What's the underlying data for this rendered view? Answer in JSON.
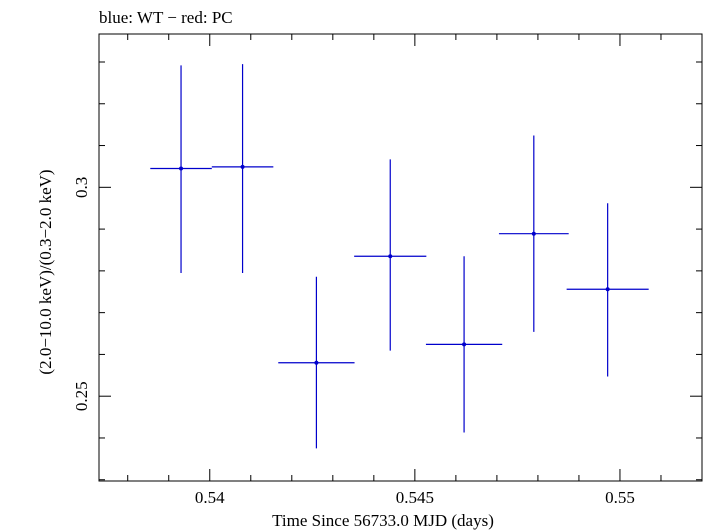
{
  "header_text": "blue: WT − red: PC",
  "chart_data": {
    "type": "scatter",
    "title": "blue: WT − red: PC",
    "xlabel": "Time Since 56733.0 MJD (days)",
    "ylabel": "(2.0−10.0 keV)/(0.3−2.0 keV)",
    "xlim": [
      0.5373,
      0.552
    ],
    "ylim": [
      0.2297,
      0.3367
    ],
    "x_ticks_major": [
      0.54,
      0.545,
      0.55
    ],
    "x_tick_labels": [
      "0.54",
      "0.545",
      "0.55"
    ],
    "y_ticks_major": [
      0.25,
      0.3
    ],
    "y_tick_labels": [
      "0.25",
      "0.3"
    ],
    "grid": false,
    "series": [
      {
        "color": "#0000cc",
        "points": [
          {
            "x": 0.5393,
            "y": 0.3045,
            "xerr": 0.00075,
            "ylow": 0.2795,
            "yhigh": 0.3292
          },
          {
            "x": 0.5408,
            "y": 0.3049,
            "xerr": 0.00075,
            "ylow": 0.2795,
            "yhigh": 0.3295
          },
          {
            "x": 0.5426,
            "y": 0.258,
            "xerr": 0.00093,
            "ylow": 0.2375,
            "yhigh": 0.2786
          },
          {
            "x": 0.5444,
            "y": 0.2835,
            "xerr": 0.00088,
            "ylow": 0.2609,
            "yhigh": 0.3067
          },
          {
            "x": 0.5462,
            "y": 0.2624,
            "xerr": 0.00093,
            "ylow": 0.2413,
            "yhigh": 0.2835
          },
          {
            "x": 0.5479,
            "y": 0.2889,
            "xerr": 0.00085,
            "ylow": 0.2654,
            "yhigh": 0.3124
          },
          {
            "x": 0.5497,
            "y": 0.2756,
            "xerr": 0.001,
            "ylow": 0.2547,
            "yhigh": 0.2962
          }
        ]
      }
    ]
  }
}
